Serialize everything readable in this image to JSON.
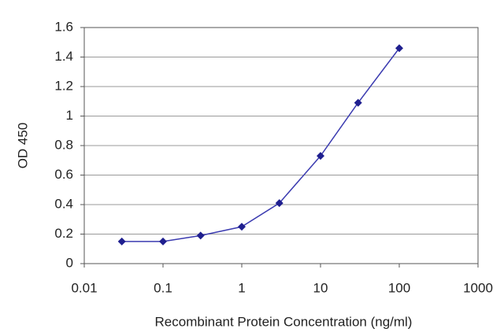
{
  "chart_data": {
    "type": "line",
    "x_label": "Recombinant Protein Concentration (ng/ml)",
    "y_label": "OD 450",
    "x": [
      0.03,
      0.1,
      0.3,
      1,
      3,
      10,
      30,
      100
    ],
    "series": [
      {
        "name": null,
        "color": "#1f1f8f",
        "values": [
          0.15,
          0.15,
          0.19,
          0.25,
          0.41,
          0.73,
          1.09,
          1.46
        ]
      }
    ],
    "xlim": [
      0.01,
      1000
    ],
    "xticks": [
      0.01,
      0.1,
      1,
      10,
      100,
      1000
    ],
    "xscale": "log",
    "ylim": [
      0,
      1.6
    ],
    "yticks": [
      0,
      0.2,
      0.4,
      0.6,
      0.8,
      1,
      1.2,
      1.4,
      1.6
    ],
    "grid": true
  }
}
